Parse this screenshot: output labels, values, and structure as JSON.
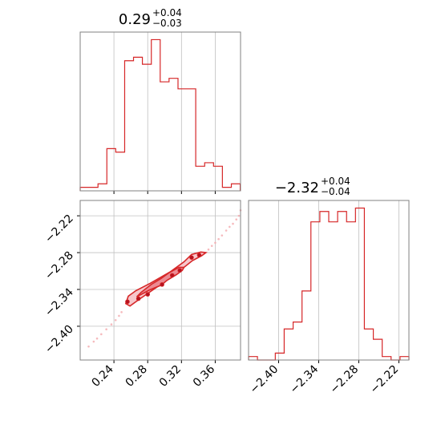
{
  "chart_data": [
    {
      "type": "histogram",
      "panel": "top-left",
      "parameter_index": 0,
      "title": {
        "median": "0.29",
        "upper": "+0.04",
        "lower": "−0.03"
      },
      "color": "#d62728",
      "xlim": [
        0.2,
        0.39
      ],
      "grid": true,
      "bin_edges": [
        0.2,
        0.2105,
        0.2211,
        0.2316,
        0.2421,
        0.2527,
        0.2632,
        0.2737,
        0.2843,
        0.2948,
        0.3053,
        0.3159,
        0.3264,
        0.3369,
        0.3475,
        0.358,
        0.3685,
        0.3791,
        0.3896
      ],
      "counts": [
        1,
        1,
        2,
        12,
        11,
        37,
        38,
        36,
        43,
        31,
        32,
        29,
        29,
        7,
        8,
        7,
        1,
        2
      ],
      "xticks": [
        0.24,
        0.28,
        0.32,
        0.36
      ]
    },
    {
      "type": "histogram",
      "panel": "bottom-right",
      "parameter_index": 1,
      "title": {
        "median": "−2.32",
        "upper": "+0.04",
        "lower": "−0.04"
      },
      "color": "#d62728",
      "xlim": [
        -2.445,
        -2.205
      ],
      "grid": true,
      "bin_edges": [
        -2.445,
        -2.4317,
        -2.4183,
        -2.405,
        -2.3917,
        -2.3783,
        -2.365,
        -2.3517,
        -2.3383,
        -2.325,
        -2.3117,
        -2.2983,
        -2.285,
        -2.2717,
        -2.2583,
        -2.245,
        -2.2317,
        -2.2183,
        -2.205
      ],
      "counts": [
        1,
        0,
        0,
        2,
        9,
        11,
        20,
        40,
        43,
        40,
        43,
        40,
        44,
        9,
        6,
        1,
        0,
        1
      ],
      "xticks": [
        -2.4,
        -2.34,
        -2.28,
        -2.22
      ],
      "xticklabels": [
        "−2.40",
        "−2.34",
        "−2.28",
        "−2.22"
      ]
    },
    {
      "type": "contour",
      "panel": "bottom-left",
      "color": "#d62728",
      "xlim": [
        0.2,
        0.39
      ],
      "ylim": [
        -2.455,
        -2.195
      ],
      "grid": true,
      "xticks": [
        0.24,
        0.28,
        0.32,
        0.36
      ],
      "xticklabels": [
        "0.24",
        "0.28",
        "0.32",
        "0.36"
      ],
      "yticks": [
        -2.22,
        -2.28,
        -2.34,
        -2.4
      ],
      "yticklabels": [
        "−2.22",
        "−2.28",
        "−2.34",
        "−2.40"
      ],
      "outer_contour": [
        [
          0.254,
          -2.363
        ],
        [
          0.257,
          -2.351
        ],
        [
          0.266,
          -2.342
        ],
        [
          0.283,
          -2.33
        ],
        [
          0.307,
          -2.311
        ],
        [
          0.323,
          -2.295
        ],
        [
          0.332,
          -2.283
        ],
        [
          0.343,
          -2.279
        ],
        [
          0.349,
          -2.28
        ],
        [
          0.344,
          -2.285
        ],
        [
          0.333,
          -2.293
        ],
        [
          0.322,
          -2.305
        ],
        [
          0.307,
          -2.321
        ],
        [
          0.29,
          -2.337
        ],
        [
          0.27,
          -2.356
        ],
        [
          0.259,
          -2.367
        ]
      ],
      "inner_contour": [
        [
          0.267,
          -2.352
        ],
        [
          0.282,
          -2.341
        ],
        [
          0.296,
          -2.333
        ],
        [
          0.303,
          -2.325
        ],
        [
          0.314,
          -2.316
        ],
        [
          0.321,
          -2.309
        ],
        [
          0.323,
          -2.304
        ],
        [
          0.317,
          -2.304
        ],
        [
          0.305,
          -2.313
        ],
        [
          0.296,
          -2.322
        ],
        [
          0.284,
          -2.332
        ],
        [
          0.272,
          -2.345
        ]
      ],
      "core_points": [
        [
          0.256,
          -2.36
        ],
        [
          0.269,
          -2.355
        ],
        [
          0.28,
          -2.348
        ],
        [
          0.297,
          -2.332
        ],
        [
          0.309,
          -2.317
        ],
        [
          0.318,
          -2.309
        ],
        [
          0.332,
          -2.288
        ],
        [
          0.341,
          -2.284
        ]
      ],
      "scatter_points": [
        [
          0.21,
          -2.433
        ],
        [
          0.216,
          -2.425
        ],
        [
          0.22,
          -2.42
        ],
        [
          0.225,
          -2.413
        ],
        [
          0.231,
          -2.405
        ],
        [
          0.237,
          -2.397
        ],
        [
          0.242,
          -2.39
        ],
        [
          0.246,
          -2.383
        ],
        [
          0.249,
          -2.377
        ],
        [
          0.352,
          -2.275
        ],
        [
          0.356,
          -2.269
        ],
        [
          0.36,
          -2.264
        ],
        [
          0.364,
          -2.258
        ],
        [
          0.368,
          -2.252
        ],
        [
          0.373,
          -2.244
        ],
        [
          0.377,
          -2.238
        ],
        [
          0.381,
          -2.233
        ],
        [
          0.385,
          -2.226
        ],
        [
          0.388,
          -2.22
        ],
        [
          0.39,
          -2.211
        ]
      ]
    }
  ]
}
